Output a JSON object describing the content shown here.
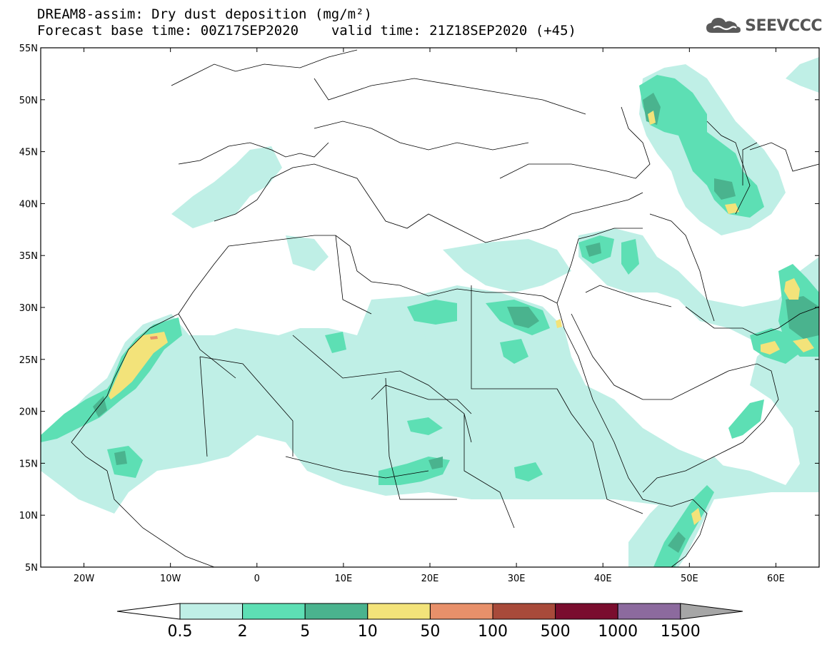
{
  "header": {
    "title": "DREAM8-assim: Dry dust deposition (mg/m²)",
    "base_time": "Forecast base time: 00Z17SEP2020",
    "valid_time": "valid time: 21Z18SEP2020 (+45)",
    "logo_text": "SEEVCCC"
  },
  "map": {
    "lon_range": [
      -25,
      65
    ],
    "lat_range": [
      5,
      55
    ],
    "lon_ticks": [
      {
        "v": -20,
        "label": "20W"
      },
      {
        "v": -10,
        "label": "10W"
      },
      {
        "v": 0,
        "label": "0"
      },
      {
        "v": 10,
        "label": "10E"
      },
      {
        "v": 20,
        "label": "20E"
      },
      {
        "v": 30,
        "label": "30E"
      },
      {
        "v": 40,
        "label": "40E"
      },
      {
        "v": 50,
        "label": "50E"
      },
      {
        "v": 60,
        "label": "60E"
      }
    ],
    "lat_ticks": [
      {
        "v": 55,
        "label": "55N"
      },
      {
        "v": 50,
        "label": "50N"
      },
      {
        "v": 45,
        "label": "45N"
      },
      {
        "v": 40,
        "label": "40N"
      },
      {
        "v": 35,
        "label": "35N"
      },
      {
        "v": 30,
        "label": "30N"
      },
      {
        "v": 25,
        "label": "25N"
      },
      {
        "v": 20,
        "label": "20N"
      },
      {
        "v": 15,
        "label": "15N"
      },
      {
        "v": 10,
        "label": "10N"
      },
      {
        "v": 5,
        "label": "5N"
      }
    ]
  },
  "colors": {
    "c05": "#bfefe6",
    "c2": "#5ddfb4",
    "c5": "#4ab38e",
    "c10": "#f3e37a",
    "c50": "#e8906a",
    "c100": "#a84a3a",
    "c500": "#7a0d2e",
    "c1000": "#8c6a9e",
    "c1500": "#a6a6a6"
  },
  "colorbar": {
    "labels": [
      "0.5",
      "2",
      "5",
      "10",
      "50",
      "100",
      "500",
      "1000",
      "1500"
    ],
    "colors": [
      "#bfefe6",
      "#5ddfb4",
      "#4ab38e",
      "#f3e37a",
      "#e8906a",
      "#a84a3a",
      "#7a0d2e",
      "#8c6a9e"
    ]
  }
}
